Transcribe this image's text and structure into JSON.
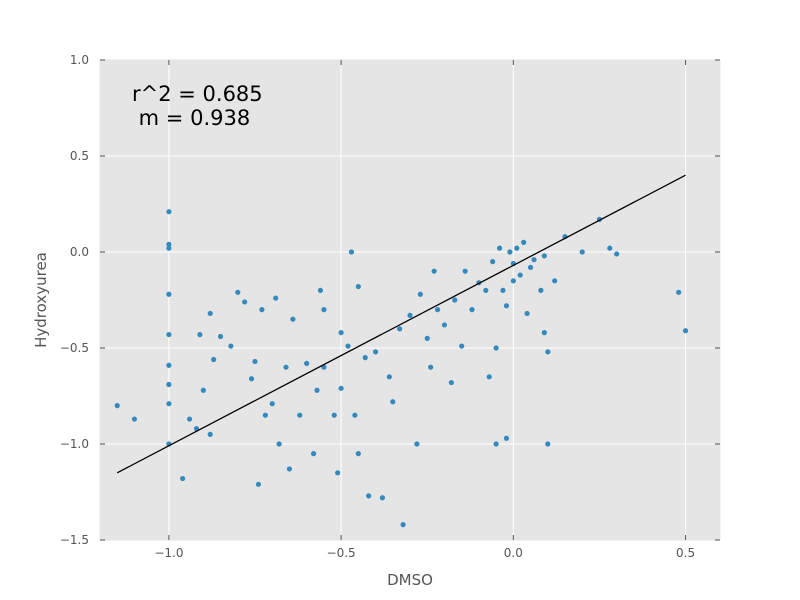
{
  "chart_data": {
    "type": "scatter",
    "title": "",
    "xlabel": "DMSO",
    "ylabel": "Hydroxyurea",
    "xlim": [
      -1.2,
      0.6
    ],
    "ylim": [
      -1.5,
      1.0
    ],
    "xticks": [
      -1.0,
      -0.5,
      0.0,
      0.5
    ],
    "xtick_labels": [
      "−1.0",
      "−0.5",
      "0.0",
      "0.5"
    ],
    "yticks": [
      -1.5,
      -1.0,
      -0.5,
      0.0,
      0.5,
      1.0
    ],
    "ytick_labels": [
      "−1.5",
      "−1.0",
      "−0.5",
      "0.0",
      "0.5",
      "1.0"
    ],
    "grid": true,
    "annotations": [
      "r^2 = 0.685",
      " m = 0.938"
    ],
    "colors": {
      "points": "#348abd",
      "line": "#000000",
      "background": "#e5e5e5",
      "grid": "#ffffff"
    },
    "series": [
      {
        "x": [
          -1.15,
          -1.1,
          -1.0,
          -1.0,
          -1.0,
          -1.0,
          -1.0,
          -1.0,
          -1.0,
          -1.0,
          -1.0,
          -0.96,
          -0.94,
          -0.92,
          -0.91,
          -0.9,
          -0.88,
          -0.88,
          -0.87,
          -0.85,
          -0.82,
          -0.8,
          -0.78,
          -0.76,
          -0.75,
          -0.74,
          -0.73,
          -0.72,
          -0.7,
          -0.69,
          -0.68,
          -0.66,
          -0.65,
          -0.64,
          -0.62,
          -0.6,
          -0.58,
          -0.57,
          -0.56,
          -0.55,
          -0.55,
          -0.52,
          -0.51,
          -0.5,
          -0.5,
          -0.48,
          -0.47,
          -0.46,
          -0.45,
          -0.45,
          -0.43,
          -0.42,
          -0.4,
          -0.38,
          -0.36,
          -0.35,
          -0.33,
          -0.32,
          -0.3,
          -0.28,
          -0.27,
          -0.25,
          -0.24,
          -0.23,
          -0.22,
          -0.2,
          -0.18,
          -0.17,
          -0.15,
          -0.14,
          -0.12,
          -0.1,
          -0.08,
          -0.07,
          -0.06,
          -0.05,
          -0.05,
          -0.04,
          -0.03,
          -0.02,
          -0.02,
          -0.01,
          0.0,
          0.0,
          0.01,
          0.02,
          0.03,
          0.04,
          0.05,
          0.06,
          0.08,
          0.09,
          0.09,
          0.1,
          0.1,
          0.12,
          0.15,
          0.2,
          0.25,
          0.28,
          0.3,
          0.48,
          0.5
        ],
        "y": [
          -0.8,
          -0.87,
          -1.0,
          -0.79,
          -0.69,
          -0.59,
          -0.43,
          -0.22,
          0.02,
          0.04,
          0.21,
          -1.18,
          -0.87,
          -0.92,
          -0.43,
          -0.72,
          -0.95,
          -0.32,
          -0.56,
          -0.44,
          -0.49,
          -0.21,
          -0.26,
          -0.66,
          -0.57,
          -1.21,
          -0.3,
          -0.85,
          -0.79,
          -0.24,
          -1.0,
          -0.6,
          -1.13,
          -0.35,
          -0.85,
          -0.58,
          -1.05,
          -0.72,
          -0.2,
          -0.3,
          -0.6,
          -0.85,
          -1.15,
          -0.71,
          -0.42,
          -0.49,
          0.0,
          -0.85,
          -1.05,
          -0.18,
          -0.55,
          -1.27,
          -0.52,
          -1.28,
          -0.65,
          -0.78,
          -0.4,
          -1.42,
          -0.33,
          -1.0,
          -0.22,
          -0.45,
          -0.6,
          -0.1,
          -0.3,
          -0.38,
          -0.68,
          -0.25,
          -0.49,
          -0.1,
          -0.3,
          -0.16,
          -0.2,
          -0.65,
          -0.05,
          -1.0,
          -0.5,
          0.02,
          -0.2,
          -0.97,
          -0.28,
          0.0,
          -0.06,
          -0.15,
          0.02,
          -0.12,
          0.05,
          -0.32,
          -0.08,
          -0.04,
          -0.2,
          -0.02,
          -0.42,
          -0.52,
          -1.0,
          -0.15,
          0.08,
          0.0,
          0.17,
          0.02,
          -0.01,
          -0.21,
          -0.41
        ]
      }
    ],
    "fit_line": {
      "x": [
        -1.15,
        0.5
      ],
      "y": [
        -1.15,
        0.4
      ]
    }
  }
}
